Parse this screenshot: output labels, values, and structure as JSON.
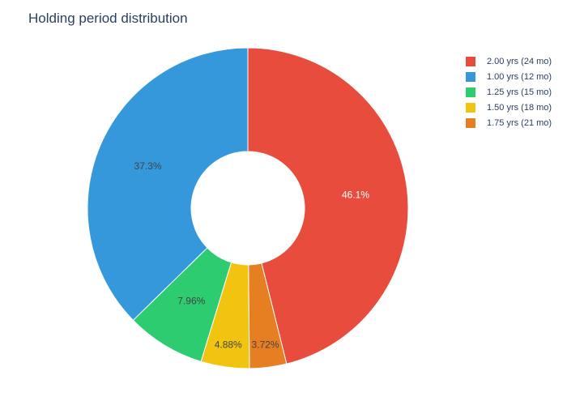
{
  "chart_data": {
    "type": "pie",
    "title": "Holding period distribution",
    "hole": true,
    "legend_position": "top-right",
    "slices": [
      {
        "label": "2.00 yrs (24 mo)",
        "value": 46.1,
        "text": "46.1%",
        "color": "#e74c3c",
        "text_color": "#ffffff"
      },
      {
        "label": "1.75 yrs (21 mo)",
        "value": 3.72,
        "text": "3.72%",
        "color": "#e67e22",
        "text_color": "#444444"
      },
      {
        "label": "1.50 yrs (18 mo)",
        "value": 4.88,
        "text": "4.88%",
        "color": "#f1c40f",
        "text_color": "#444444"
      },
      {
        "label": "1.25 yrs (15 mo)",
        "value": 7.96,
        "text": "7.96%",
        "color": "#2ecc71",
        "text_color": "#444444"
      },
      {
        "label": "1.00 yrs (12 mo)",
        "value": 37.3,
        "text": "37.3%",
        "color": "#3498db",
        "text_color": "#444444"
      }
    ],
    "legend": [
      {
        "label": "2.00 yrs (24 mo)",
        "color": "#e74c3c"
      },
      {
        "label": "1.00 yrs (12 mo)",
        "color": "#3498db"
      },
      {
        "label": "1.25 yrs (15 mo)",
        "color": "#2ecc71"
      },
      {
        "label": "1.50 yrs (18 mo)",
        "color": "#f1c40f"
      },
      {
        "label": "1.75 yrs (21 mo)",
        "color": "#e67e22"
      }
    ]
  }
}
